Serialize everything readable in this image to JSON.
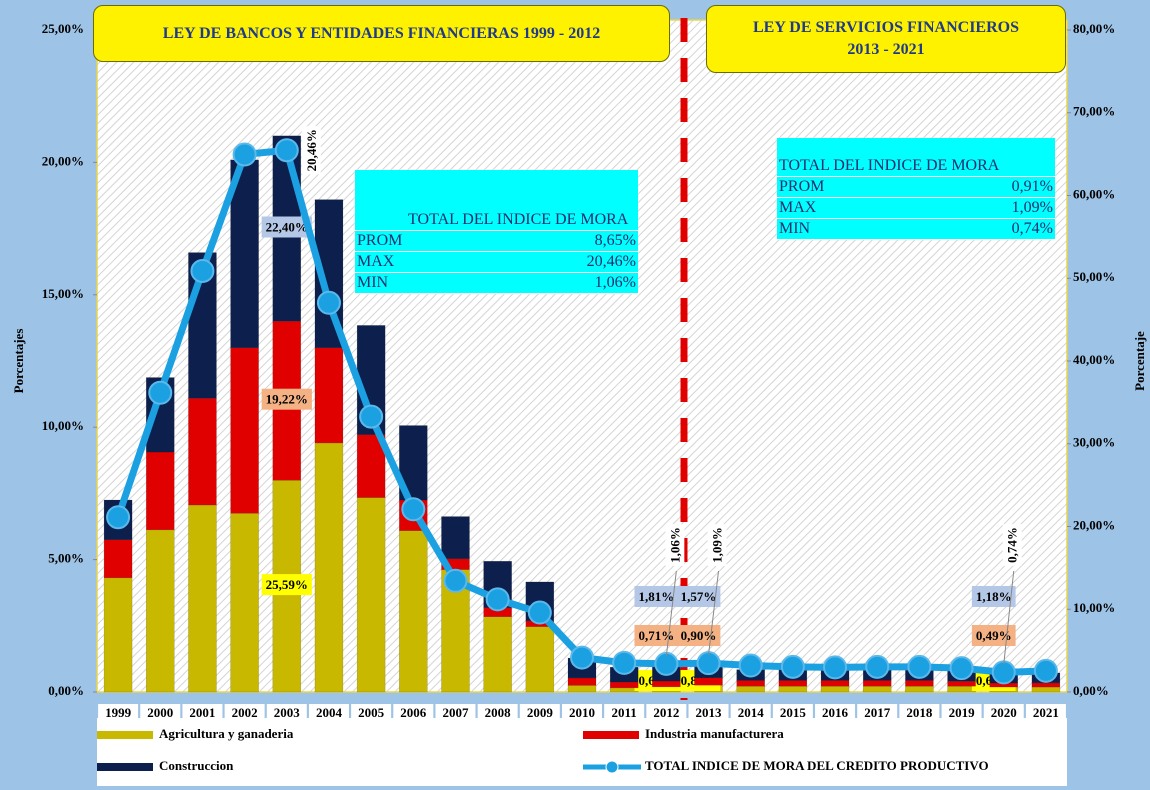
{
  "chart_data": {
    "type": "bar",
    "banners": [
      "LEY DE BANCOS Y ENTIDADES FINANCIERAS 1999 - 2012",
      "LEY DE SERVICIOS FINANCIEROS 2013 - 2021"
    ],
    "ylabel": "Porcentajes",
    "y2label": "Porcentaje",
    "categories": [
      "1999",
      "2000",
      "2001",
      "2002",
      "2003",
      "2004",
      "2005",
      "2006",
      "2007",
      "2008",
      "2009",
      "2010",
      "2011",
      "2012",
      "2013",
      "2014",
      "2015",
      "2016",
      "2017",
      "2018",
      "2019",
      "2020",
      "2021"
    ],
    "series": [
      {
        "name": "Agricultura y ganaderia",
        "color": "#c9b800",
        "axis": "y2",
        "type": "bar",
        "values": [
          13.8,
          19.6,
          22.6,
          21.6,
          25.59,
          30.1,
          23.5,
          19.5,
          14.8,
          9.1,
          7.9,
          0.8,
          0.5,
          0.62,
          0.82,
          0.7,
          0.7,
          0.7,
          0.7,
          0.7,
          0.7,
          0.6,
          0.6
        ],
        "value_labels": [
          null,
          null,
          null,
          null,
          "25,59%",
          null,
          null,
          null,
          null,
          null,
          null,
          null,
          null,
          "0,62%",
          "0,82%",
          null,
          null,
          null,
          null,
          null,
          null,
          "0,60%",
          null
        ]
      },
      {
        "name": "Industria manufacturera",
        "color": "#e00000",
        "axis": "y2",
        "type": "bar",
        "values": [
          4.6,
          9.4,
          12.9,
          20.0,
          19.22,
          11.5,
          7.6,
          3.7,
          1.3,
          1.1,
          0.7,
          0.9,
          0.7,
          0.71,
          0.9,
          0.7,
          0.7,
          0.7,
          0.7,
          0.7,
          0.6,
          0.49,
          0.5
        ],
        "value_labels": [
          null,
          null,
          null,
          null,
          "19,22%",
          null,
          null,
          null,
          null,
          null,
          null,
          null,
          null,
          "0,71%",
          "0,90%",
          null,
          null,
          null,
          null,
          null,
          null,
          "0,49%",
          null
        ]
      },
      {
        "name": "Construccion",
        "color": "#0d1f4d",
        "axis": "y2",
        "type": "bar",
        "values": [
          4.8,
          9.0,
          17.6,
          22.7,
          22.4,
          17.9,
          13.2,
          9.0,
          5.1,
          5.6,
          4.7,
          2.4,
          1.8,
          1.81,
          1.57,
          1.3,
          1.3,
          1.3,
          1.3,
          1.3,
          1.3,
          1.18,
          1.2
        ],
        "value_labels": [
          null,
          null,
          null,
          null,
          "22,40%",
          null,
          null,
          null,
          null,
          null,
          null,
          null,
          null,
          "1,81%",
          "1,57%",
          null,
          null,
          null,
          null,
          null,
          null,
          "1,18%",
          null
        ]
      },
      {
        "name": "TOTAL INDICE DE MORA DEL CREDITO PRODUCTIVO",
        "color": "#1ba1e2",
        "axis": "y",
        "type": "line",
        "values": [
          6.6,
          11.3,
          15.9,
          20.3,
          20.46,
          14.7,
          10.4,
          6.9,
          4.2,
          3.5,
          3.0,
          1.3,
          1.1,
          1.06,
          1.09,
          1.0,
          0.95,
          0.93,
          0.95,
          0.95,
          0.9,
          0.74,
          0.8
        ],
        "value_labels": [
          null,
          null,
          null,
          null,
          "20,46%",
          null,
          null,
          null,
          null,
          null,
          null,
          null,
          null,
          "1,06%",
          "1,09%",
          null,
          null,
          null,
          null,
          null,
          null,
          "0,74%",
          null
        ]
      }
    ],
    "ylim": [
      0,
      25
    ],
    "yticks": [
      {
        "value": 0,
        "label": "0,00%"
      },
      {
        "value": 5,
        "label": "5,00%"
      },
      {
        "value": 10,
        "label": "10,00%"
      },
      {
        "value": 15,
        "label": "15,00%"
      },
      {
        "value": 20,
        "label": "20,00%"
      },
      {
        "value": 25,
        "label": "25,00%"
      }
    ],
    "y2lim": [
      0,
      80
    ],
    "y2ticks": [
      {
        "value": 0,
        "label": "0,00%"
      },
      {
        "value": 10,
        "label": "10,00%"
      },
      {
        "value": 20,
        "label": "20,00%"
      },
      {
        "value": 30,
        "label": "30,00%"
      },
      {
        "value": 40,
        "label": "40,00%"
      },
      {
        "value": 50,
        "label": "50,00%"
      },
      {
        "value": 60,
        "label": "60,00%"
      },
      {
        "value": 70,
        "label": "70,00%"
      },
      {
        "value": 80,
        "label": "80,00%"
      }
    ],
    "tables": [
      {
        "title": "TOTAL DEL INDICE DE MORA",
        "rows": [
          [
            "PROM",
            "8,65%"
          ],
          [
            "MAX",
            "20,46%"
          ],
          [
            "MIN",
            "1,06%"
          ]
        ]
      },
      {
        "title": "TOTAL DEL INDICE DE MORA",
        "rows": [
          [
            "PROM",
            "0,91%"
          ],
          [
            "MAX",
            "1,09%"
          ],
          [
            "MIN",
            "0,74%"
          ]
        ]
      }
    ]
  }
}
